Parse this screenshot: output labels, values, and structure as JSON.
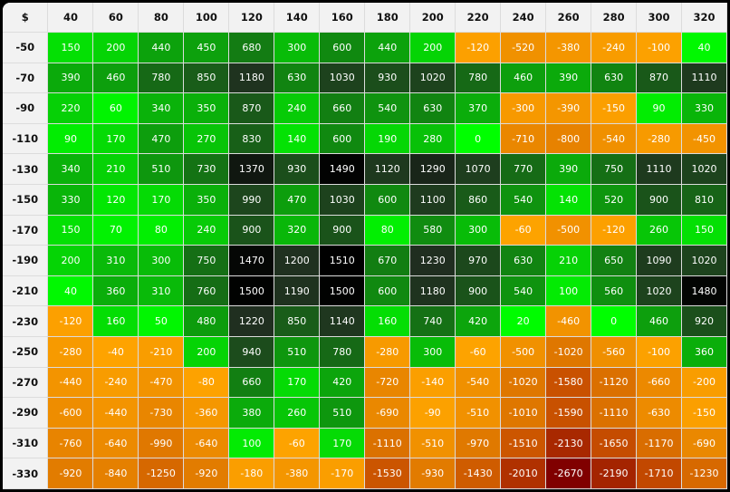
{
  "chart_data": {
    "type": "heatmap",
    "corner_label": "$",
    "columns": [
      "40",
      "60",
      "80",
      "100",
      "120",
      "140",
      "160",
      "180",
      "200",
      "220",
      "240",
      "260",
      "280",
      "300",
      "320"
    ],
    "rows": [
      "-50",
      "-70",
      "-90",
      "-110",
      "-130",
      "-150",
      "-170",
      "-190",
      "-210",
      "-230",
      "-250",
      "-270",
      "-290",
      "-310",
      "-330"
    ],
    "values": [
      [
        150,
        200,
        440,
        450,
        680,
        300,
        600,
        440,
        200,
        -120,
        -520,
        -380,
        -240,
        -100,
        40
      ],
      [
        390,
        460,
        780,
        850,
        1180,
        630,
        1030,
        930,
        1020,
        780,
        460,
        390,
        630,
        870,
        1110
      ],
      [
        220,
        60,
        340,
        350,
        870,
        240,
        660,
        540,
        630,
        370,
        -300,
        -390,
        -150,
        90,
        330
      ],
      [
        90,
        170,
        470,
        270,
        830,
        140,
        600,
        190,
        280,
        0,
        -710,
        -800,
        -540,
        -280,
        -450
      ],
      [
        340,
        210,
        510,
        730,
        1370,
        930,
        1490,
        1120,
        1290,
        1070,
        770,
        390,
        750,
        1110,
        1020
      ],
      [
        330,
        120,
        170,
        350,
        990,
        470,
        1030,
        600,
        1100,
        860,
        540,
        140,
        520,
        900,
        810
      ],
      [
        150,
        70,
        80,
        240,
        900,
        320,
        900,
        80,
        580,
        300,
        -60,
        -500,
        -120,
        260,
        150
      ],
      [
        200,
        310,
        300,
        750,
        1470,
        1200,
        1510,
        670,
        1230,
        970,
        630,
        210,
        650,
        1090,
        1020
      ],
      [
        40,
        360,
        310,
        760,
        1500,
        1190,
        1500,
        600,
        1180,
        900,
        540,
        100,
        560,
        1020,
        1480
      ],
      [
        -120,
        160,
        50,
        480,
        1220,
        850,
        1140,
        160,
        740,
        420,
        20,
        -460,
        0,
        460,
        920
      ],
      [
        -280,
        -40,
        -210,
        200,
        940,
        510,
        780,
        -280,
        300,
        -60,
        -500,
        -1020,
        -560,
        -100,
        360
      ],
      [
        -440,
        -240,
        -470,
        -80,
        660,
        170,
        420,
        -720,
        -140,
        -540,
        -1020,
        -1580,
        -1120,
        -660,
        -200
      ],
      [
        -600,
        -440,
        -730,
        -360,
        380,
        260,
        510,
        -690,
        -90,
        -510,
        -1010,
        -1590,
        -1110,
        -630,
        -150
      ],
      [
        -760,
        -640,
        -990,
        -640,
        100,
        -60,
        170,
        -1110,
        -510,
        -970,
        -1510,
        -2130,
        -1650,
        -1170,
        -690
      ],
      [
        -920,
        -840,
        -1250,
        -920,
        -180,
        -380,
        -170,
        -1530,
        -930,
        -1430,
        -2010,
        -2670,
        -2190,
        -1710,
        -1230
      ]
    ],
    "color_scale": {
      "positive": [
        "#00ff00",
        "#0ab00a",
        "#128012",
        "#1c4a1c",
        "#202e20",
        "#000000"
      ],
      "negative": [
        "#ffa500",
        "#f09000",
        "#dd7400",
        "#c85000",
        "#a82800",
        "#800000"
      ]
    }
  }
}
